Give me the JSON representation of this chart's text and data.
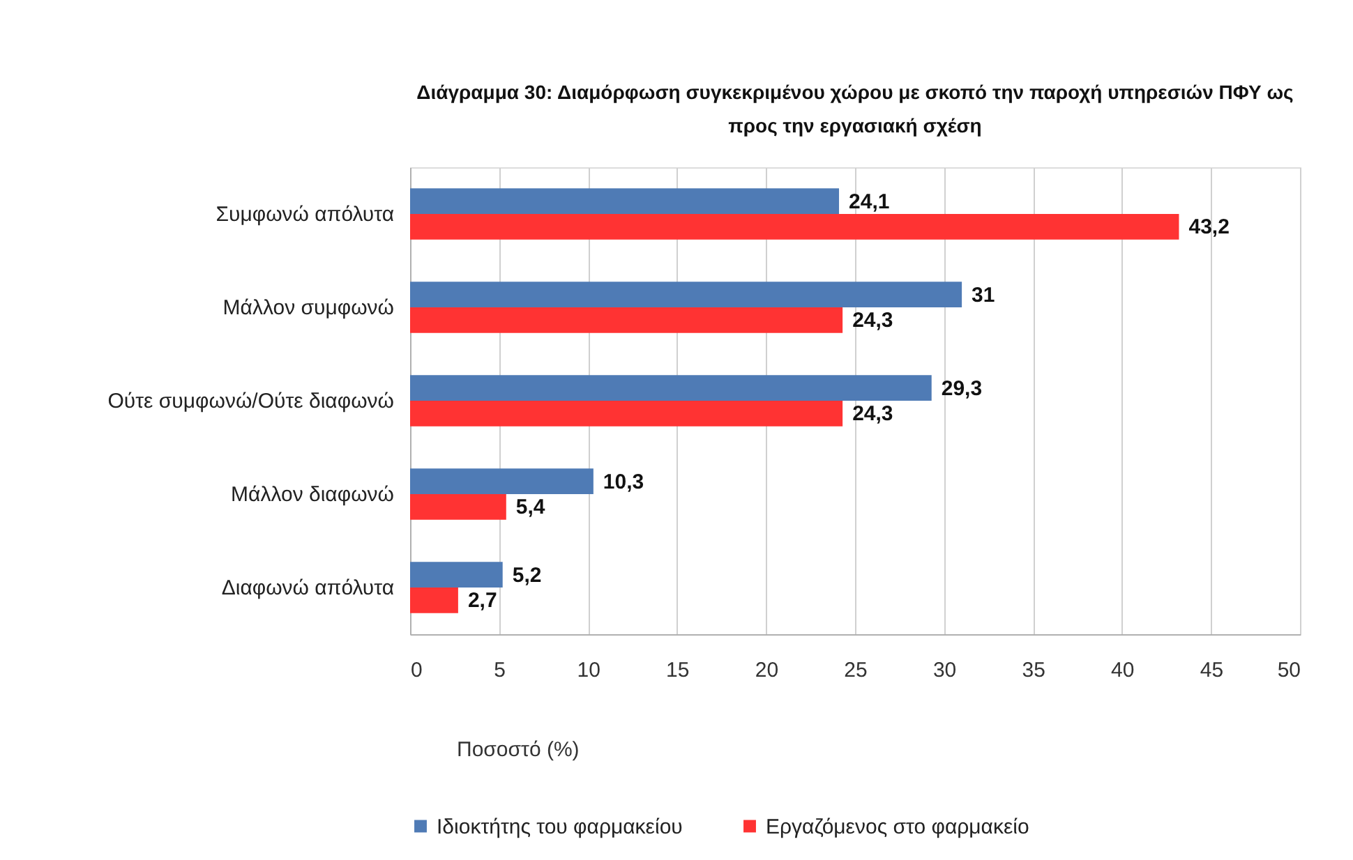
{
  "chart_data": {
    "type": "bar",
    "orientation": "horizontal",
    "title": "Διάγραμμα 30: Διαμόρφωση συγκεκριμένου χώρου με σκοπό την παροχή υπηρεσιών ΠΦΥ ως προς την εργασιακή σχέση",
    "xlabel": "Ποσοστό (%)",
    "categories": [
      "Συμφωνώ απόλυτα",
      "Μάλλον συμφωνώ",
      "Ούτε συμφωνώ/Ούτε διαφωνώ",
      "Μάλλον διαφωνώ",
      "Διαφωνώ απόλυτα"
    ],
    "series": [
      {
        "name": "Ιδιοκτήτης του φαρμακείου",
        "color": "#4f7bb5",
        "values": [
          24.1,
          31,
          29.3,
          10.3,
          5.2
        ],
        "value_labels": [
          "24,1",
          "31",
          "29,3",
          "10,3",
          "5,2"
        ]
      },
      {
        "name": "Εργαζόμενος στο φαρμακείο",
        "color": "#ff3333",
        "values": [
          43.2,
          24.3,
          24.3,
          5.4,
          2.7
        ],
        "value_labels": [
          "43,2",
          "24,3",
          "24,3",
          "5,4",
          "2,7"
        ]
      }
    ],
    "xlim": [
      0,
      50
    ],
    "xticks": [
      0,
      5,
      10,
      15,
      20,
      25,
      30,
      35,
      40,
      45,
      50
    ],
    "grid": "x",
    "legend": "bottom"
  }
}
